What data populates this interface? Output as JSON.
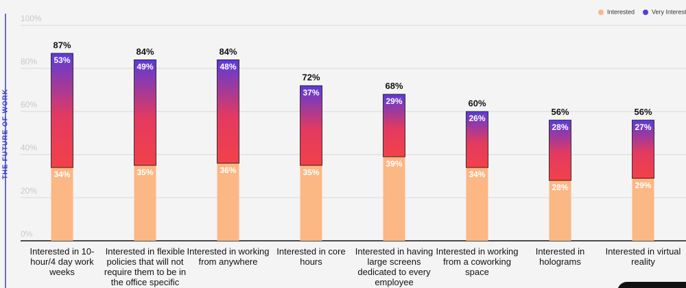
{
  "side_title": "THE FUTURE OF WORK",
  "chart_data": {
    "type": "stacked-bar",
    "categories": [
      "Interested in 10-hour/4 day work weeks",
      "Interested in flexible policies that will not require them to be in the office specific",
      "Interested in working from anywhere",
      "Interested in core hours",
      "Interested in having large screens dedicated to every employee",
      "Interested in working from a coworking space",
      "Interested in holograms",
      "Interested in virtual reality"
    ],
    "series": [
      {
        "name": "Interested",
        "color": "#fbb784",
        "values": [
          34,
          35,
          36,
          35,
          39,
          34,
          28,
          29
        ],
        "value_labels": [
          "34%",
          "35%",
          "36%",
          "35%",
          "39%",
          "34%",
          "28%",
          "29%"
        ]
      },
      {
        "name": "Very Interested",
        "color": "#5b3bd8",
        "values": [
          53,
          49,
          48,
          37,
          29,
          26,
          28,
          27
        ],
        "value_labels": [
          "53%",
          "49%",
          "48%",
          "37%",
          "29%",
          "26%",
          "28%",
          "27%"
        ]
      }
    ],
    "total_labels": [
      "87%",
      "84%",
      "84%",
      "72%",
      "68%",
      "60%",
      "56%",
      "56%"
    ],
    "ylim": [
      0,
      100
    ],
    "yticks": [
      {
        "value": 0,
        "label": "0%"
      },
      {
        "value": 20,
        "label": "20%"
      },
      {
        "value": 40,
        "label": "40%"
      },
      {
        "value": 60,
        "label": "60%"
      },
      {
        "value": 80,
        "label": "80%"
      },
      {
        "value": 100,
        "label": "100%"
      }
    ],
    "grid": true,
    "legend": "top-right"
  }
}
